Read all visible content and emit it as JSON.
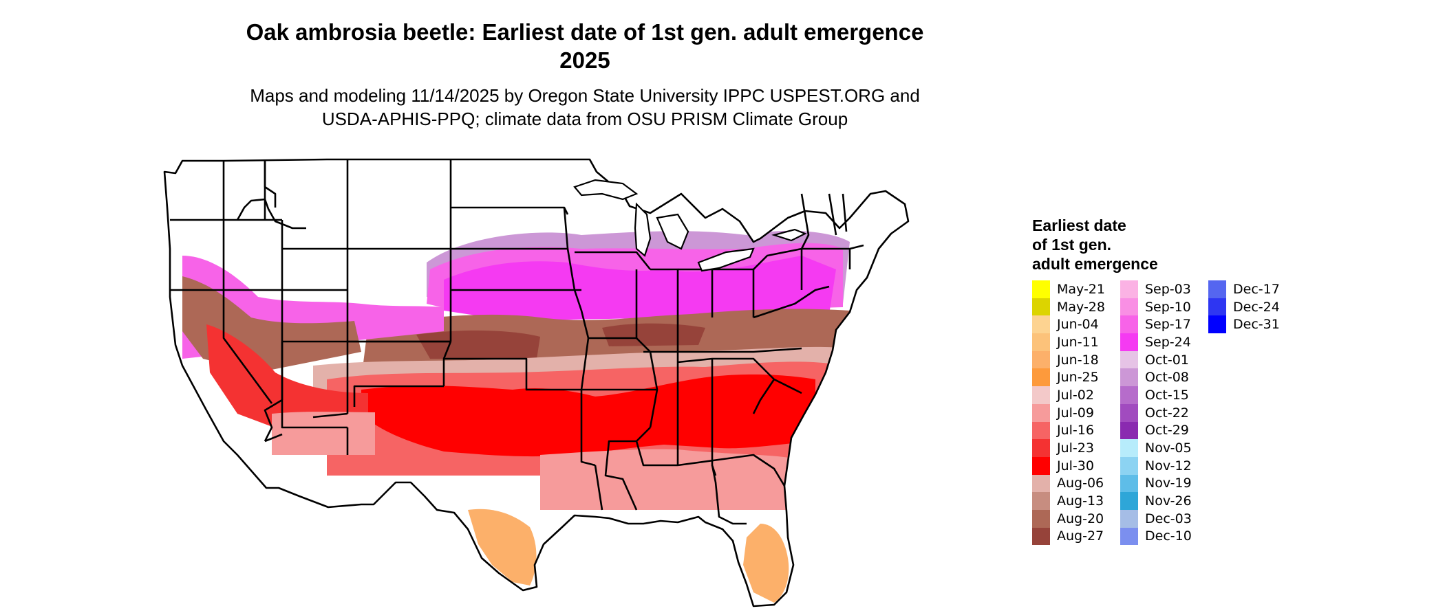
{
  "title_line1": "Oak ambrosia beetle: Earliest date of 1st gen. adult emergence",
  "title_line2": "2025",
  "subtitle_line1": "Maps and modeling 11/14/2025 by Oregon State University IPPC USPEST.ORG and",
  "subtitle_line2": "USDA-APHIS-PPQ; climate data from OSU PRISM Climate Group",
  "legend": {
    "title_lines": [
      "Earliest date",
      "of 1st gen.",
      "adult emergence"
    ],
    "items": [
      {
        "label": "May-21",
        "color": "#ffff00"
      },
      {
        "label": "May-28",
        "color": "#dcd400"
      },
      {
        "label": "Jun-04",
        "color": "#fdd391"
      },
      {
        "label": "Jun-11",
        "color": "#fcc27a"
      },
      {
        "label": "Jun-18",
        "color": "#fcb06a"
      },
      {
        "label": "Jun-25",
        "color": "#fd9a3c"
      },
      {
        "label": "Jul-02",
        "color": "#f3c9c9"
      },
      {
        "label": "Jul-09",
        "color": "#f69b9b"
      },
      {
        "label": "Jul-16",
        "color": "#f66464"
      },
      {
        "label": "Jul-23",
        "color": "#f43232"
      },
      {
        "label": "Jul-30",
        "color": "#ff0000"
      },
      {
        "label": "Aug-06",
        "color": "#e3b1aa"
      },
      {
        "label": "Aug-13",
        "color": "#c78d80"
      },
      {
        "label": "Aug-20",
        "color": "#ad6856"
      },
      {
        "label": "Aug-27",
        "color": "#96433a"
      },
      {
        "label": "Sep-03",
        "color": "#fbb2e4"
      },
      {
        "label": "Sep-10",
        "color": "#f98fe4"
      },
      {
        "label": "Sep-17",
        "color": "#f763e8"
      },
      {
        "label": "Sep-24",
        "color": "#f53af2"
      },
      {
        "label": "Oct-01",
        "color": "#e6c3e6"
      },
      {
        "label": "Oct-08",
        "color": "#cc97d6"
      },
      {
        "label": "Oct-15",
        "color": "#b66ccb"
      },
      {
        "label": "Oct-22",
        "color": "#a14bbf"
      },
      {
        "label": "Oct-29",
        "color": "#8a2ab0"
      },
      {
        "label": "Nov-05",
        "color": "#b7ecfb"
      },
      {
        "label": "Nov-12",
        "color": "#8cd3f2"
      },
      {
        "label": "Nov-19",
        "color": "#5ebde8"
      },
      {
        "label": "Nov-26",
        "color": "#2ea6d8"
      },
      {
        "label": "Dec-03",
        "color": "#a5bde6"
      },
      {
        "label": "Dec-10",
        "color": "#7b8fef"
      },
      {
        "label": "Dec-17",
        "color": "#5566f0"
      },
      {
        "label": "Dec-24",
        "color": "#2e36f2"
      },
      {
        "label": "Dec-31",
        "color": "#0000ff"
      }
    ]
  },
  "map_colors": {
    "outline": "#000000",
    "land_no_data": "#ffffff"
  }
}
